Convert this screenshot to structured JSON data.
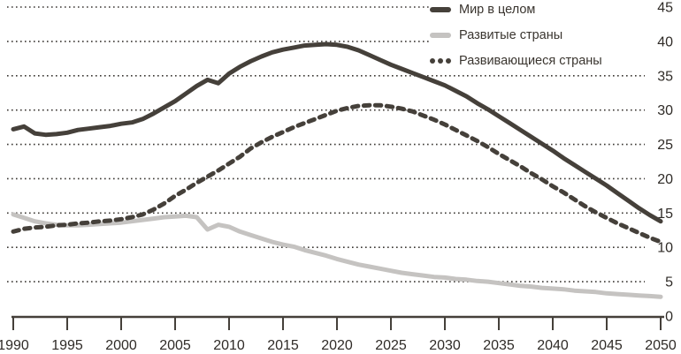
{
  "chart_data": {
    "type": "line",
    "title": "",
    "xlabel": "",
    "ylabel": "",
    "xlim": [
      1990,
      2050
    ],
    "ylim": [
      0,
      45
    ],
    "x_ticks": [
      1990,
      1995,
      2000,
      2005,
      2010,
      2015,
      2020,
      2025,
      2030,
      2035,
      2040,
      2045,
      2050
    ],
    "y_ticks": [
      0,
      5,
      10,
      15,
      20,
      25,
      30,
      35,
      40,
      45
    ],
    "grid": "horizontal-dotted",
    "legend_position": "top-right",
    "y_axis_side": "right",
    "colors": {
      "dark_line": "#45403a",
      "light_line": "#c5c3c1",
      "grid": "#3b3733",
      "axis": "#45403a",
      "text": "#2f2b27"
    },
    "x": [
      1990,
      1991,
      1992,
      1993,
      1994,
      1995,
      1996,
      1997,
      1998,
      1999,
      2000,
      2001,
      2002,
      2003,
      2004,
      2005,
      2006,
      2007,
      2008,
      2009,
      2010,
      2011,
      2012,
      2013,
      2014,
      2015,
      2016,
      2017,
      2018,
      2019,
      2020,
      2021,
      2022,
      2023,
      2024,
      2025,
      2026,
      2027,
      2028,
      2029,
      2030,
      2031,
      2032,
      2033,
      2034,
      2035,
      2036,
      2037,
      2038,
      2039,
      2040,
      2041,
      2042,
      2043,
      2044,
      2045,
      2046,
      2047,
      2048,
      2049,
      2050
    ],
    "series": [
      {
        "name": "Мир в целом",
        "style": "solid",
        "color": "#45403a",
        "width": 5,
        "values": [
          27.2,
          27.6,
          26.6,
          26.4,
          26.5,
          26.7,
          27.1,
          27.3,
          27.5,
          27.7,
          28.0,
          28.2,
          28.7,
          29.5,
          30.4,
          31.3,
          32.4,
          33.5,
          34.4,
          33.9,
          35.3,
          36.3,
          37.1,
          37.8,
          38.4,
          38.8,
          39.1,
          39.4,
          39.5,
          39.6,
          39.5,
          39.2,
          38.7,
          38.0,
          37.3,
          36.6,
          36.0,
          35.4,
          34.8,
          34.2,
          33.6,
          32.8,
          32.0,
          31.0,
          30.1,
          29.1,
          28.1,
          27.1,
          26.1,
          25.1,
          24.1,
          23.0,
          22.0,
          21.0,
          20.0,
          19.0,
          17.9,
          16.8,
          15.7,
          14.7,
          13.8
        ]
      },
      {
        "name": "Развитые страны",
        "style": "solid",
        "color": "#c5c3c1",
        "width": 5,
        "values": [
          14.8,
          14.3,
          13.8,
          13.5,
          13.3,
          13.2,
          13.2,
          13.3,
          13.4,
          13.5,
          13.6,
          13.8,
          14.0,
          14.2,
          14.4,
          14.5,
          14.6,
          14.4,
          12.6,
          13.3,
          13.0,
          12.3,
          11.8,
          11.3,
          10.8,
          10.4,
          10.1,
          9.6,
          9.2,
          8.8,
          8.3,
          7.9,
          7.5,
          7.2,
          6.9,
          6.6,
          6.3,
          6.1,
          5.9,
          5.7,
          5.6,
          5.4,
          5.3,
          5.1,
          5.0,
          4.8,
          4.6,
          4.4,
          4.3,
          4.1,
          4.0,
          3.9,
          3.7,
          3.6,
          3.5,
          3.3,
          3.2,
          3.1,
          3.0,
          2.9,
          2.8
        ]
      },
      {
        "name": "Развивающиеся страны",
        "style": "dashed",
        "color": "#45403a",
        "width": 5,
        "values": [
          12.3,
          12.7,
          12.9,
          13.0,
          13.2,
          13.3,
          13.5,
          13.6,
          13.8,
          13.9,
          14.1,
          14.4,
          14.8,
          15.5,
          16.4,
          17.5,
          18.4,
          19.4,
          20.3,
          21.2,
          22.2,
          23.2,
          24.4,
          25.3,
          26.1,
          26.8,
          27.5,
          28.1,
          28.7,
          29.3,
          29.9,
          30.3,
          30.6,
          30.7,
          30.7,
          30.5,
          30.2,
          29.8,
          29.2,
          28.6,
          27.9,
          27.1,
          26.3,
          25.5,
          24.6,
          23.6,
          22.7,
          21.8,
          20.8,
          19.9,
          18.9,
          18.0,
          17.0,
          16.0,
          15.1,
          14.3,
          13.5,
          12.8,
          12.1,
          11.4,
          10.8
        ]
      }
    ]
  }
}
